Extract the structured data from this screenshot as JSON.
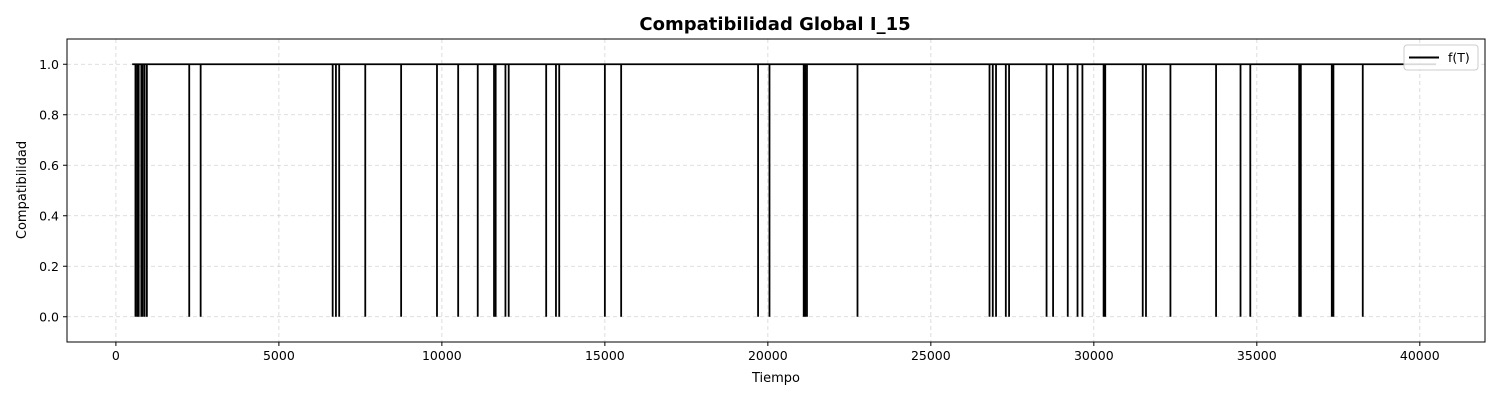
{
  "chart_data": {
    "type": "line",
    "title": "Compatibilidad Global I_15",
    "xlabel": "Tiempo",
    "ylabel": "Compatibilidad",
    "xlim": [
      -1500,
      42000
    ],
    "ylim": [
      -0.1,
      1.1
    ],
    "xticks": [
      0,
      5000,
      10000,
      15000,
      20000,
      25000,
      30000,
      35000,
      40000
    ],
    "xtick_labels": [
      "0",
      "5000",
      "10000",
      "15000",
      "20000",
      "25000",
      "30000",
      "35000",
      "40000"
    ],
    "yticks": [
      0.0,
      0.2,
      0.4,
      0.6,
      0.8,
      1.0
    ],
    "ytick_labels": [
      "0.0",
      "0.2",
      "0.4",
      "0.6",
      "0.8",
      "1.0"
    ],
    "grid": true,
    "legend_position": "top-right",
    "series": [
      {
        "name": "f(T)",
        "color": "#000000",
        "x_range": [
          500,
          40500
        ],
        "baseline": 1.0,
        "drop_value": 0.0,
        "drops_at_x": [
          600,
          650,
          700,
          780,
          820,
          880,
          950,
          2250,
          2600,
          6650,
          6750,
          6850,
          7650,
          8750,
          9850,
          10500,
          11100,
          11600,
          11650,
          11950,
          12050,
          13200,
          13500,
          13600,
          15000,
          15500,
          19700,
          20050,
          21100,
          21150,
          21200,
          22750,
          26800,
          26900,
          27000,
          27300,
          27400,
          28550,
          28750,
          29200,
          29500,
          29650,
          30300,
          30350,
          31500,
          31600,
          32350,
          33750,
          34500,
          34800,
          36300,
          36350,
          37300,
          37350,
          38250
        ]
      }
    ]
  }
}
